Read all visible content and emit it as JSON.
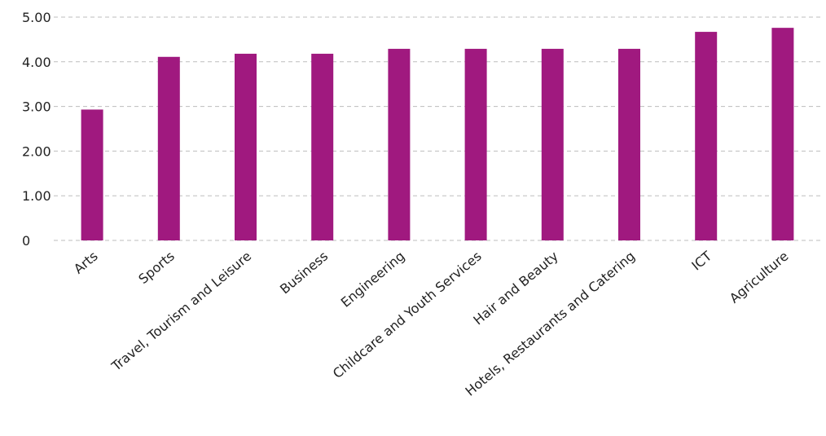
{
  "chart_data": {
    "type": "bar",
    "categories": [
      "Arts",
      "Sports",
      "Travel, Tourism and Leisure",
      "Business",
      "Engineering",
      "Childcare and Youth Services",
      "Hair and Beauty",
      "Hotels, Restaurants and Catering",
      "ICT",
      "Agriculture"
    ],
    "series": [
      {
        "values": [
          2.93,
          4.11,
          4.18,
          4.18,
          4.29,
          4.29,
          4.29,
          4.29,
          4.67,
          4.76
        ]
      }
    ],
    "title": "",
    "xlabel": "",
    "ylabel": "",
    "ylim": [
      0,
      5
    ],
    "yticks": [
      "0",
      "1.00",
      "2.00",
      "3.00",
      "4.00",
      "5.00"
    ],
    "grid": true,
    "legend": "none",
    "bar_color": "#a0197f",
    "grid_color": "#bdbdbd"
  }
}
